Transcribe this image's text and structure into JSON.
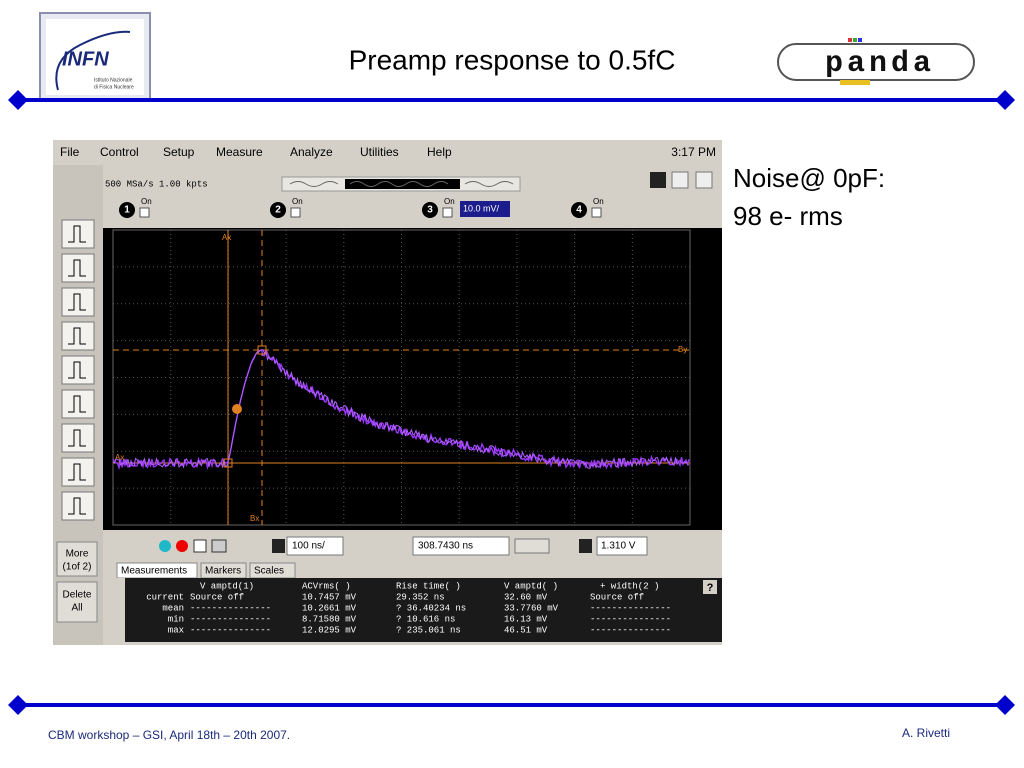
{
  "header": {
    "title": "Preamp response to 0.5fC",
    "logo_left": {
      "name": "INFN",
      "subtitle_1": "Istituto Nazionale",
      "subtitle_2": "di Fisica Nucleare"
    },
    "logo_right": "panda"
  },
  "scope": {
    "menu": [
      "File",
      "Control",
      "Setup",
      "Measure",
      "Analyze",
      "Utilities",
      "Help"
    ],
    "clock": "3:17 PM",
    "status": "500 MSa/s   1.00 kpts",
    "channels": [
      {
        "number": "1",
        "state": "On"
      },
      {
        "number": "2",
        "state": "On"
      },
      {
        "number": "3",
        "state": "On"
      },
      {
        "number": "4",
        "state": "On"
      }
    ],
    "channel_3_scale": "10.0 mV/",
    "markers": {
      "ax_top": "Ax",
      "bx": "Bx",
      "by": "By",
      "ax_left": "Ax"
    },
    "left_buttons": {
      "more": "More",
      "more_page": "(1of 2)",
      "delete": "Delete",
      "delete_2": "All"
    },
    "controls": {
      "timebase": "100 ns/",
      "delay": "308.7430 ns",
      "trigger_level": "1.310 V"
    },
    "tabs": [
      "Measurements",
      "Markers",
      "Scales"
    ],
    "measurements": {
      "columns": [
        "V amptd(1)",
        "ACVrms( )",
        "Rise time( )",
        "V amptd( )",
        "+ width(2 )"
      ],
      "rows": [
        {
          "label": "current",
          "cells": [
            "Source off",
            "10.7457 mV",
            "29.352 ns",
            "32.60 mV",
            "Source off"
          ]
        },
        {
          "label": "mean",
          "cells": [
            "---------------",
            "10.2661 mV",
            "? 36.40234 ns",
            "33.7760 mV",
            "---------------"
          ]
        },
        {
          "label": "min",
          "cells": [
            "---------------",
            "8.71580 mV",
            "? 10.616 ns",
            "16.13 mV",
            "---------------"
          ]
        },
        {
          "label": "max",
          "cells": [
            "---------------",
            "12.0295 mV",
            "? 235.061 ns",
            "46.51 mV",
            "---------------"
          ]
        }
      ]
    },
    "help": "?"
  },
  "side_note": {
    "lines": [
      "Noise@ 0pF:",
      "98 e- rms"
    ]
  },
  "footer": {
    "event": "CBM workshop – GSI, April 18th – 20th 2007.",
    "author": "A. Rivetti"
  }
}
